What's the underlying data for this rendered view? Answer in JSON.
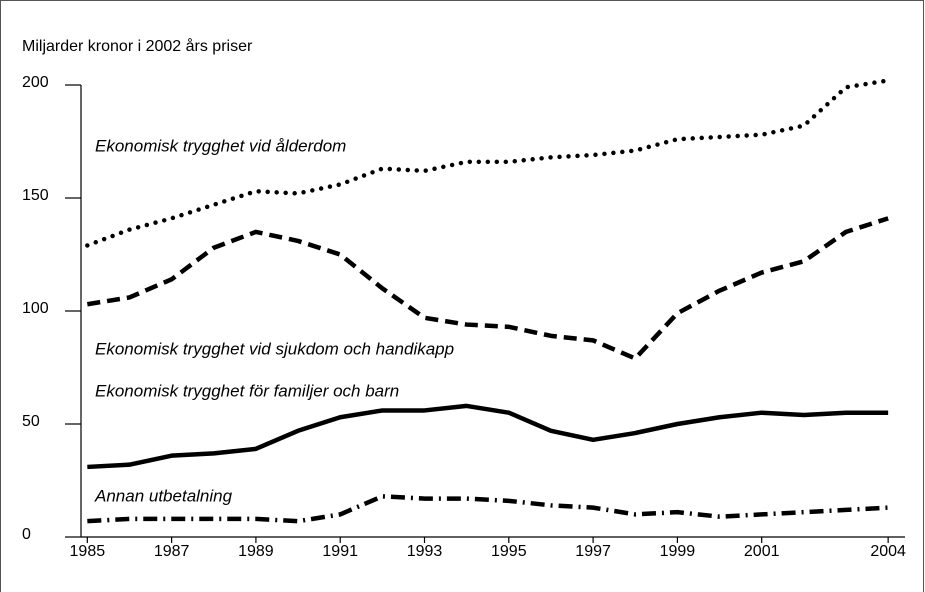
{
  "chart_data": {
    "type": "line",
    "ylabel": "Miljarder kronor i 2002 års priser",
    "x": [
      1985,
      1986,
      1987,
      1988,
      1989,
      1990,
      1991,
      1992,
      1993,
      1994,
      1995,
      1996,
      1997,
      1998,
      1999,
      2000,
      2001,
      2002,
      2003,
      2004
    ],
    "series": [
      {
        "name": "Ekonomisk trygghet vid ålderdom",
        "color": "#000000",
        "style": "dotted",
        "values": [
          129,
          136,
          141,
          147,
          153,
          152,
          156,
          163,
          162,
          166,
          166,
          168,
          169,
          171,
          176,
          177,
          178,
          182,
          199,
          202
        ]
      },
      {
        "name": "Ekonomisk trygghet vid sjukdom och handikapp",
        "color": "#000000",
        "style": "dashed",
        "values": [
          103,
          106,
          114,
          128,
          135,
          131,
          125,
          110,
          97,
          94,
          93,
          89,
          87,
          79,
          99,
          109,
          117,
          122,
          135,
          141
        ]
      },
      {
        "name": "Ekonomisk trygghet för familjer och barn",
        "color": "#000000",
        "style": "solid",
        "values": [
          31,
          32,
          36,
          37,
          39,
          47,
          53,
          56,
          56,
          58,
          55,
          47,
          43,
          46,
          50,
          53,
          55,
          54,
          55,
          55
        ]
      },
      {
        "name": "Annan utbetalning",
        "color": "#000000",
        "style": "dashdot",
        "values": [
          7,
          8,
          8,
          8,
          8,
          7,
          10,
          18,
          17,
          17,
          16,
          14,
          13,
          10,
          11,
          9,
          10,
          11,
          12,
          13
        ]
      }
    ],
    "xlim": [
      1984.85,
      2004.4
    ],
    "xticks": [
      1985,
      1987,
      1989,
      1991,
      1993,
      1995,
      1997,
      1999,
      2001,
      2004
    ],
    "ylim": [
      0,
      200
    ],
    "yticks": [
      0,
      50,
      100,
      150,
      200
    ],
    "grid": false
  }
}
